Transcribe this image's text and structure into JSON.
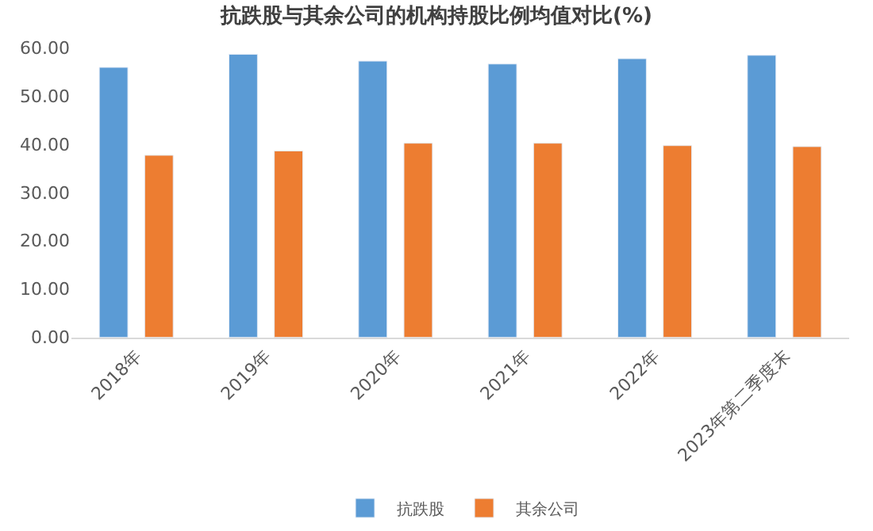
{
  "chart_data": {
    "type": "bar",
    "title": "抗跌股与其余公司的机构持股比例均值对比(%)",
    "categories": [
      "2018年",
      "2019年",
      "2020年",
      "2021年",
      "2022年",
      "2023年第二季度末"
    ],
    "series": [
      {
        "name": "抗跌股",
        "color": "#5b9bd5",
        "values": [
          55.9,
          58.6,
          57.2,
          56.6,
          57.7,
          58.4
        ]
      },
      {
        "name": "其余公司",
        "color": "#ed7d31",
        "values": [
          37.7,
          38.6,
          40.2,
          40.2,
          39.7,
          39.5
        ]
      }
    ],
    "ylim": [
      0,
      60
    ],
    "yticks": [
      {
        "value": 0,
        "label": "0.00"
      },
      {
        "value": 10,
        "label": "10.00"
      },
      {
        "value": 20,
        "label": "20.00"
      },
      {
        "value": 30,
        "label": "30.00"
      },
      {
        "value": 40,
        "label": "40.00"
      },
      {
        "value": 50,
        "label": "50.00"
      },
      {
        "value": 60,
        "label": "60.00"
      }
    ],
    "grid": false,
    "legend": "bottom"
  }
}
